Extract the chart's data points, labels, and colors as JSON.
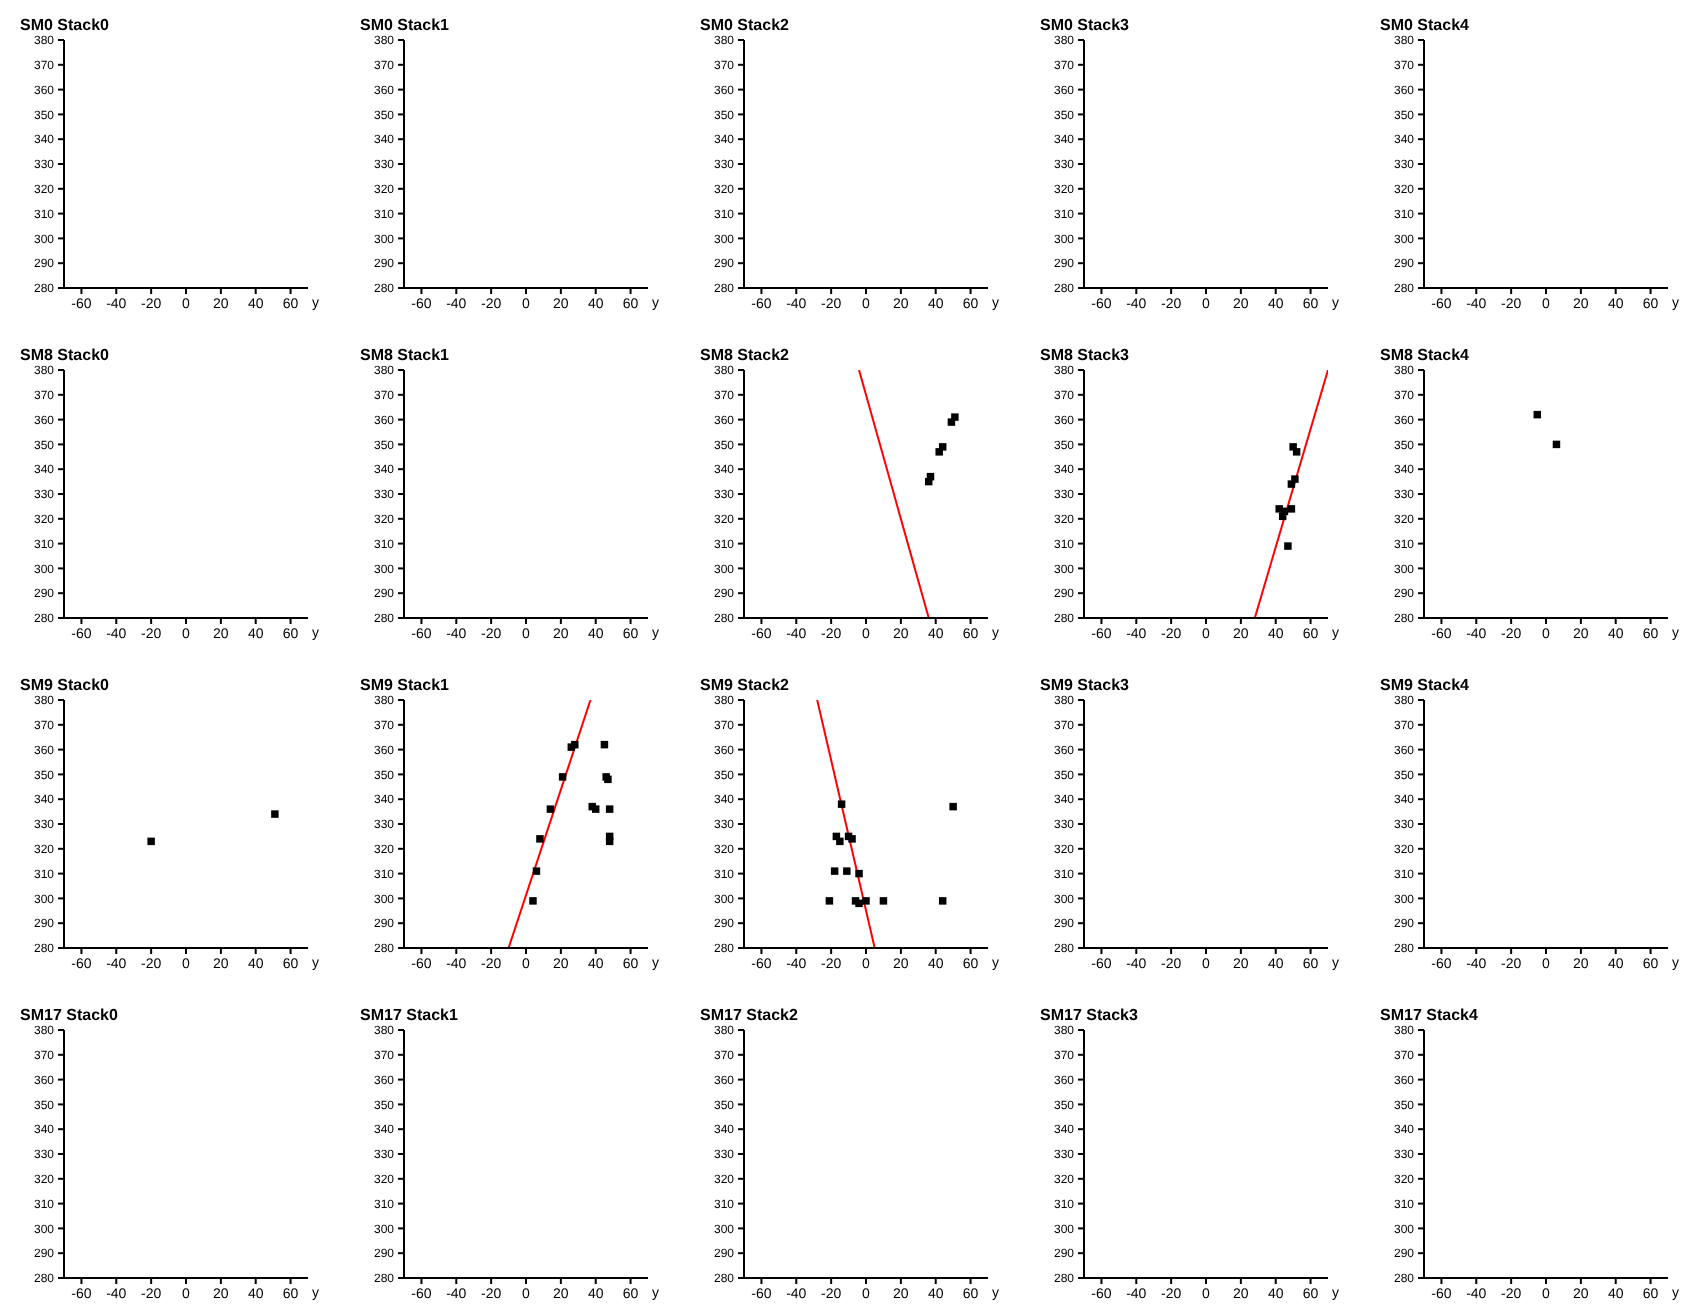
{
  "chart_data": [
    {
      "type": "scatter",
      "title": "SM0 Stack0",
      "xlabel": "y",
      "xlim": [
        -70,
        70
      ],
      "xticks": [
        -60,
        -40,
        -20,
        0,
        20,
        40,
        60
      ],
      "ylim": [
        280,
        380
      ],
      "yticks": [
        280,
        290,
        300,
        310,
        320,
        330,
        340,
        350,
        360,
        370,
        380
      ]
    },
    {
      "type": "scatter",
      "title": "SM0 Stack1",
      "xlabel": "y",
      "xlim": [
        -70,
        70
      ],
      "xticks": [
        -60,
        -40,
        -20,
        0,
        20,
        40,
        60
      ],
      "ylim": [
        280,
        380
      ],
      "yticks": [
        280,
        290,
        300,
        310,
        320,
        330,
        340,
        350,
        360,
        370,
        380
      ]
    },
    {
      "type": "scatter",
      "title": "SM0 Stack2",
      "xlabel": "y",
      "xlim": [
        -70,
        70
      ],
      "xticks": [
        -60,
        -40,
        -20,
        0,
        20,
        40,
        60
      ],
      "ylim": [
        280,
        380
      ],
      "yticks": [
        280,
        290,
        300,
        310,
        320,
        330,
        340,
        350,
        360,
        370,
        380
      ]
    },
    {
      "type": "scatter",
      "title": "SM0 Stack3",
      "xlabel": "y",
      "xlim": [
        -70,
        70
      ],
      "xticks": [
        -60,
        -40,
        -20,
        0,
        20,
        40,
        60
      ],
      "ylim": [
        280,
        380
      ],
      "yticks": [
        280,
        290,
        300,
        310,
        320,
        330,
        340,
        350,
        360,
        370,
        380
      ]
    },
    {
      "type": "scatter",
      "title": "SM0 Stack4",
      "xlabel": "y",
      "xlim": [
        -70,
        70
      ],
      "xticks": [
        -60,
        -40,
        -20,
        0,
        20,
        40,
        60
      ],
      "ylim": [
        280,
        380
      ],
      "yticks": [
        280,
        290,
        300,
        310,
        320,
        330,
        340,
        350,
        360,
        370,
        380
      ]
    },
    {
      "type": "scatter",
      "title": "SM8 Stack0",
      "xlabel": "y",
      "xlim": [
        -70,
        70
      ],
      "xticks": [
        -60,
        -40,
        -20,
        0,
        20,
        40,
        60
      ],
      "ylim": [
        280,
        380
      ],
      "yticks": [
        280,
        290,
        300,
        310,
        320,
        330,
        340,
        350,
        360,
        370,
        380
      ]
    },
    {
      "type": "scatter",
      "title": "SM8 Stack1",
      "xlabel": "y",
      "xlim": [
        -70,
        70
      ],
      "xticks": [
        -60,
        -40,
        -20,
        0,
        20,
        40,
        60
      ],
      "ylim": [
        280,
        380
      ],
      "yticks": [
        280,
        290,
        300,
        310,
        320,
        330,
        340,
        350,
        360,
        370,
        380
      ]
    },
    {
      "type": "scatter",
      "title": "SM8 Stack2",
      "xlabel": "y",
      "xlim": [
        -70,
        70
      ],
      "xticks": [
        -60,
        -40,
        -20,
        0,
        20,
        40,
        60
      ],
      "ylim": [
        280,
        380
      ],
      "yticks": [
        280,
        290,
        300,
        310,
        320,
        330,
        340,
        350,
        360,
        370,
        380
      ],
      "series": [
        {
          "color": "#000000",
          "marker": "square",
          "x": [
            36,
            37,
            42,
            44,
            49,
            51
          ],
          "values": [
            335,
            337,
            347,
            349,
            359,
            361
          ]
        },
        {
          "type": "line",
          "color": "#ff0000",
          "marker": "none",
          "x": [
            -4,
            36
          ],
          "values": [
            380,
            280
          ]
        }
      ]
    },
    {
      "type": "scatter",
      "title": "SM8 Stack3",
      "xlabel": "y",
      "xlim": [
        -70,
        70
      ],
      "xticks": [
        -60,
        -40,
        -20,
        0,
        20,
        40,
        60
      ],
      "ylim": [
        280,
        380
      ],
      "yticks": [
        280,
        290,
        300,
        310,
        320,
        330,
        340,
        350,
        360,
        370,
        380
      ],
      "series": [
        {
          "color": "#000000",
          "marker": "square",
          "x": [
            50,
            52,
            49,
            51,
            42,
            44,
            45,
            49,
            47
          ],
          "values": [
            349,
            347,
            334,
            336,
            324,
            321,
            323,
            324,
            309
          ]
        },
        {
          "type": "line",
          "color": "#ff0000",
          "marker": "none",
          "x": [
            28,
            70
          ],
          "values": [
            280,
            380
          ]
        }
      ]
    },
    {
      "type": "scatter",
      "title": "SM8 Stack4",
      "xlabel": "y",
      "xlim": [
        -70,
        70
      ],
      "xticks": [
        -60,
        -40,
        -20,
        0,
        20,
        40,
        60
      ],
      "ylim": [
        280,
        380
      ],
      "yticks": [
        280,
        290,
        300,
        310,
        320,
        330,
        340,
        350,
        360,
        370,
        380
      ],
      "series": [
        {
          "color": "#000000",
          "marker": "square",
          "x": [
            -5,
            6
          ],
          "values": [
            362,
            350
          ]
        }
      ]
    },
    {
      "type": "scatter",
      "title": "SM9 Stack0",
      "xlabel": "y",
      "xlim": [
        -70,
        70
      ],
      "xticks": [
        -60,
        -40,
        -20,
        0,
        20,
        40,
        60
      ],
      "ylim": [
        280,
        380
      ],
      "yticks": [
        280,
        290,
        300,
        310,
        320,
        330,
        340,
        350,
        360,
        370,
        380
      ],
      "series": [
        {
          "color": "#000000",
          "marker": "square",
          "x": [
            -20,
            51
          ],
          "values": [
            323,
            334
          ]
        }
      ]
    },
    {
      "type": "scatter",
      "title": "SM9 Stack1",
      "xlabel": "y",
      "xlim": [
        -70,
        70
      ],
      "xticks": [
        -60,
        -40,
        -20,
        0,
        20,
        40,
        60
      ],
      "ylim": [
        280,
        380
      ],
      "yticks": [
        280,
        290,
        300,
        310,
        320,
        330,
        340,
        350,
        360,
        370,
        380
      ],
      "series": [
        {
          "color": "#000000",
          "marker": "square",
          "x": [
            4,
            6,
            8,
            14,
            21,
            26,
            28,
            45,
            46,
            47,
            38,
            40,
            48,
            48,
            48
          ],
          "values": [
            299,
            311,
            324,
            336,
            349,
            361,
            362,
            362,
            349,
            348,
            337,
            336,
            336,
            325,
            323
          ]
        },
        {
          "type": "line",
          "color": "#ff0000",
          "marker": "none",
          "x": [
            -10,
            37
          ],
          "values": [
            280,
            380
          ]
        }
      ]
    },
    {
      "type": "scatter",
      "title": "SM9 Stack2",
      "xlabel": "y",
      "xlim": [
        -70,
        70
      ],
      "xticks": [
        -60,
        -40,
        -20,
        0,
        20,
        40,
        60
      ],
      "ylim": [
        280,
        380
      ],
      "yticks": [
        280,
        290,
        300,
        310,
        320,
        330,
        340,
        350,
        360,
        370,
        380
      ],
      "series": [
        {
          "color": "#000000",
          "marker": "square",
          "x": [
            -14,
            -17,
            -15,
            -10,
            -8,
            -18,
            -11,
            -4,
            -21,
            -6,
            -4,
            0,
            10,
            44,
            50
          ],
          "values": [
            338,
            325,
            323,
            325,
            324,
            311,
            311,
            310,
            299,
            299,
            298,
            299,
            299,
            299,
            337
          ]
        },
        {
          "type": "line",
          "color": "#ff0000",
          "marker": "none",
          "x": [
            -28,
            5
          ],
          "values": [
            380,
            280
          ]
        }
      ]
    },
    {
      "type": "scatter",
      "title": "SM9 Stack3",
      "xlabel": "y",
      "xlim": [
        -70,
        70
      ],
      "xticks": [
        -60,
        -40,
        -20,
        0,
        20,
        40,
        60
      ],
      "ylim": [
        280,
        380
      ],
      "yticks": [
        280,
        290,
        300,
        310,
        320,
        330,
        340,
        350,
        360,
        370,
        380
      ]
    },
    {
      "type": "scatter",
      "title": "SM9 Stack4",
      "xlabel": "y",
      "xlim": [
        -70,
        70
      ],
      "xticks": [
        -60,
        -40,
        -20,
        0,
        20,
        40,
        60
      ],
      "ylim": [
        280,
        380
      ],
      "yticks": [
        280,
        290,
        300,
        310,
        320,
        330,
        340,
        350,
        360,
        370,
        380
      ]
    },
    {
      "type": "scatter",
      "title": "SM17 Stack0",
      "xlabel": "y",
      "xlim": [
        -70,
        70
      ],
      "xticks": [
        -60,
        -40,
        -20,
        0,
        20,
        40,
        60
      ],
      "ylim": [
        280,
        380
      ],
      "yticks": [
        280,
        290,
        300,
        310,
        320,
        330,
        340,
        350,
        360,
        370,
        380
      ]
    },
    {
      "type": "scatter",
      "title": "SM17 Stack1",
      "xlabel": "y",
      "xlim": [
        -70,
        70
      ],
      "xticks": [
        -60,
        -40,
        -20,
        0,
        20,
        40,
        60
      ],
      "ylim": [
        280,
        380
      ],
      "yticks": [
        280,
        290,
        300,
        310,
        320,
        330,
        340,
        350,
        360,
        370,
        380
      ]
    },
    {
      "type": "scatter",
      "title": "SM17 Stack2",
      "xlabel": "y",
      "xlim": [
        -70,
        70
      ],
      "xticks": [
        -60,
        -40,
        -20,
        0,
        20,
        40,
        60
      ],
      "ylim": [
        280,
        380
      ],
      "yticks": [
        280,
        290,
        300,
        310,
        320,
        330,
        340,
        350,
        360,
        370,
        380
      ]
    },
    {
      "type": "scatter",
      "title": "SM17 Stack3",
      "xlabel": "y",
      "xlim": [
        -70,
        70
      ],
      "xticks": [
        -60,
        -40,
        -20,
        0,
        20,
        40,
        60
      ],
      "ylim": [
        280,
        380
      ],
      "yticks": [
        280,
        290,
        300,
        310,
        320,
        330,
        340,
        350,
        360,
        370,
        380
      ]
    },
    {
      "type": "scatter",
      "title": "SM17 Stack4",
      "xlabel": "y",
      "xlim": [
        -70,
        70
      ],
      "xticks": [
        -60,
        -40,
        -20,
        0,
        20,
        40,
        60
      ],
      "ylim": [
        280,
        380
      ],
      "yticks": [
        280,
        290,
        300,
        310,
        320,
        330,
        340,
        350,
        360,
        370,
        380
      ]
    }
  ]
}
